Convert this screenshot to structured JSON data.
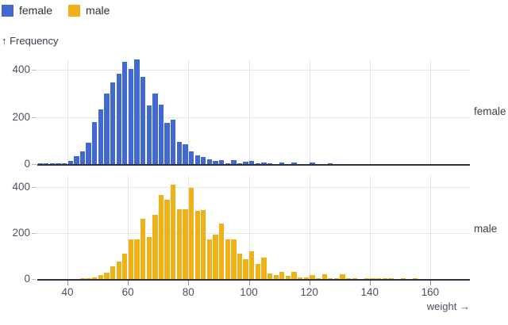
{
  "legend": {
    "items": [
      {
        "label": "female",
        "color": "#4269d0"
      },
      {
        "label": "male",
        "color": "#efb118"
      }
    ]
  },
  "y_axis_title": "↑ Frequency",
  "x_axis_title": "weight →",
  "chart_data": {
    "type": "bar",
    "subtype": "faceted-histogram",
    "title": "",
    "xlabel": "weight",
    "ylabel": "Frequency",
    "bin_width": 2,
    "x_domain": [
      30,
      173
    ],
    "y_domain": [
      0,
      450
    ],
    "x_ticks": [
      40,
      60,
      80,
      100,
      120,
      140,
      160
    ],
    "y_ticks": [
      0,
      200,
      400
    ],
    "grid": true,
    "legend_position": "top-left",
    "facets": [
      {
        "label": "female",
        "color": "#4269d0",
        "x_start": 30,
        "counts": [
          1,
          4,
          2,
          2,
          3,
          12,
          33,
          55,
          91,
          178,
          232,
          299,
          347,
          384,
          435,
          402,
          443,
          370,
          248,
          301,
          253,
          175,
          189,
          93,
          85,
          55,
          37,
          30,
          19,
          13,
          18,
          3,
          16,
          3,
          9,
          12,
          2,
          7,
          1,
          0,
          6,
          0,
          6,
          0,
          0,
          6,
          0,
          0,
          2
        ]
      },
      {
        "label": "male",
        "color": "#efb118",
        "x_start": 44,
        "counts": [
          1,
          2,
          6,
          18,
          28,
          56,
          76,
          110,
          171,
          171,
          263,
          183,
          280,
          364,
          346,
          410,
          304,
          304,
          395,
          298,
          300,
          174,
          193,
          240,
          171,
          174,
          110,
          87,
          122,
          64,
          93,
          26,
          16,
          30,
          15,
          30,
          7,
          7,
          18,
          5,
          20,
          2,
          1,
          21,
          2,
          2,
          0,
          2,
          2,
          1,
          1,
          1,
          0,
          1,
          0,
          1
        ]
      }
    ]
  },
  "colors": {
    "axis": "#2b3340",
    "tick_text": "#4a5260",
    "grid": "#e4e7ea",
    "background": "#ffffff",
    "legend_text": "#2a313b"
  }
}
